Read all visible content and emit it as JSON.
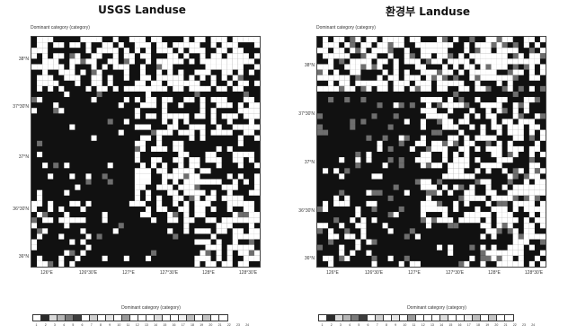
{
  "panels": [
    {
      "id": "usgs",
      "title": "USGS Landuse",
      "subtitle": "Dominant category (category)",
      "y_ticks": [
        "38°N",
        "37°30'N",
        "37°N",
        "36°30'N",
        "36°N"
      ],
      "x_ticks": [
        "126°E",
        "126°30'E",
        "127°E",
        "127°30'E",
        "128°E",
        "128°30'E"
      ],
      "colorbar_title": "Dominant category (category)"
    },
    {
      "id": "moe",
      "title": "환경부 Landuse",
      "subtitle": "Dominant category (category)",
      "y_ticks": [
        "38°N",
        "37°30'N",
        "37°N",
        "36°30'N",
        "36°N"
      ],
      "x_ticks": [
        "126°E",
        "126°30'E",
        "127°E",
        "127°30'E",
        "128°E",
        "128°30'E"
      ],
      "colorbar_title": "Dominant category (category)"
    }
  ],
  "colorbar": {
    "labels": [
      "1",
      "2",
      "3",
      "4",
      "5",
      "6",
      "7",
      "8",
      "9",
      "10",
      "11",
      "12",
      "13",
      "14",
      "15",
      "16",
      "17",
      "18",
      "19",
      "20",
      "21",
      "22",
      "23",
      "24"
    ],
    "colors": [
      "#ffffff",
      "#2b2b2b",
      "#d9d9d9",
      "#b5b5b5",
      "#7a7a7a",
      "#3d3d3d",
      "#ffffff",
      "#cfcfcf",
      "#ffffff",
      "#e6e6e6",
      "#ffffff",
      "#9a9a9a",
      "#ffffff",
      "#ffffff",
      "#ffffff",
      "#dedede",
      "#ffffff",
      "#ffffff",
      "#f0f0f0",
      "#bfbfbf",
      "#ffffff",
      "#c4c4c4",
      "#ffffff",
      "#ffffff"
    ]
  }
}
